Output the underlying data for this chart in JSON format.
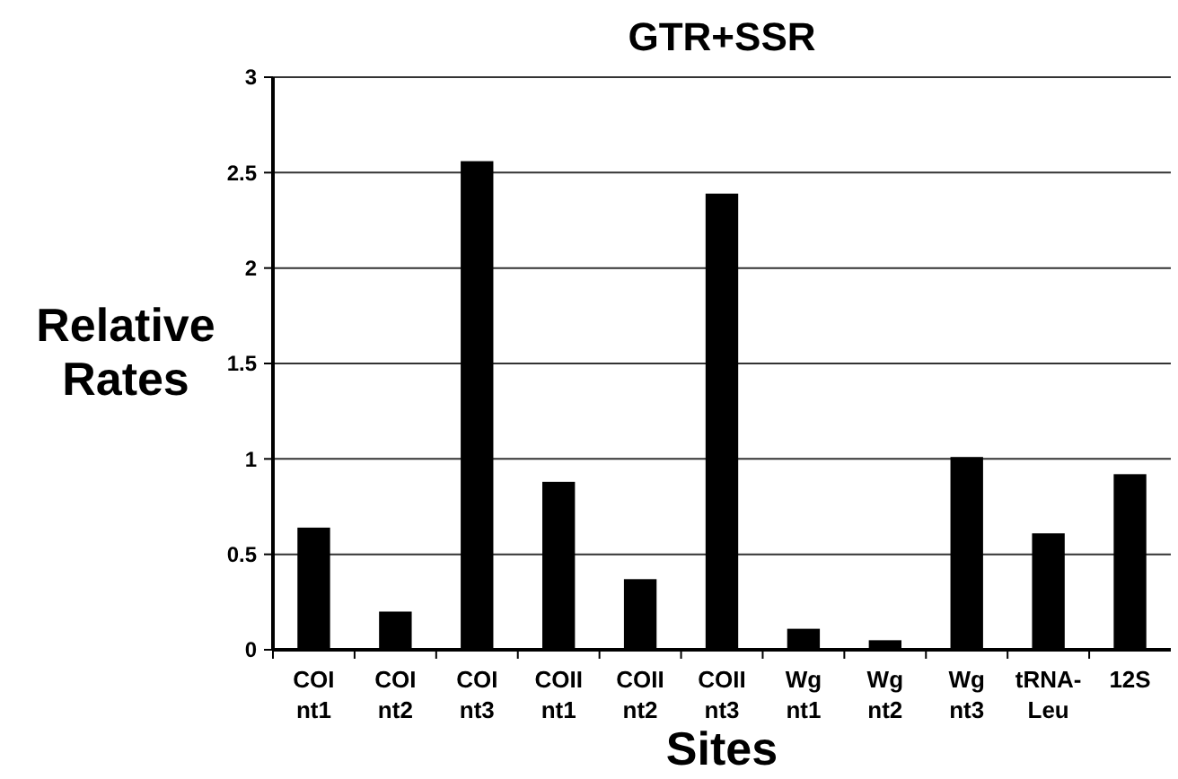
{
  "chart_data": {
    "type": "bar",
    "title": "GTR+SSR",
    "xlabel": "Sites",
    "ylabel": "Relative Rates",
    "categories": [
      "COI nt1",
      "COI nt2",
      "COI nt3",
      "COII nt1",
      "COII nt2",
      "COII nt3",
      "Wg nt1",
      "Wg nt2",
      "Wg nt3",
      "tRNA-Leu",
      "12S"
    ],
    "values": [
      0.64,
      0.2,
      2.56,
      0.88,
      0.37,
      2.39,
      0.11,
      0.05,
      1.01,
      0.61,
      0.92
    ],
    "color": "#000000",
    "ylim": [
      0,
      3
    ],
    "yticks": [
      0,
      0.5,
      1,
      1.5,
      2,
      2.5,
      3
    ],
    "grid": "y"
  }
}
